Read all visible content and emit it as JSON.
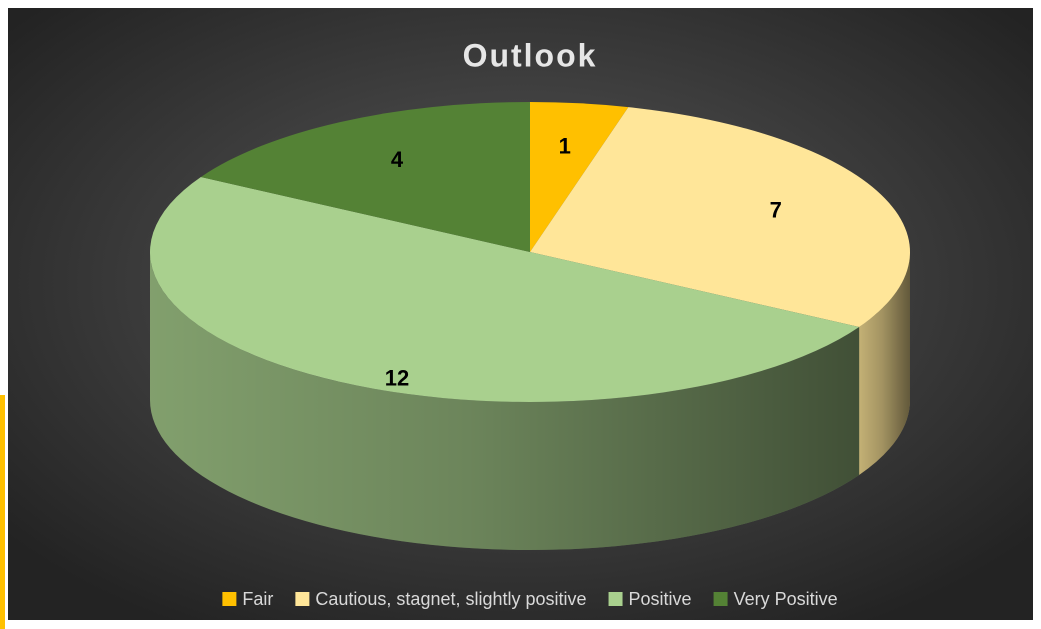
{
  "chart_data": {
    "type": "pie3d",
    "title": "Outlook",
    "categories": [
      "Fair",
      "Cautious, stagnet, slightly positive",
      "Positive",
      "Very Positive"
    ],
    "values": [
      1,
      7,
      12,
      4
    ],
    "colors": [
      "#ffc000",
      "#ffe699",
      "#a9d08e",
      "#548235"
    ],
    "legend": "bottom"
  }
}
